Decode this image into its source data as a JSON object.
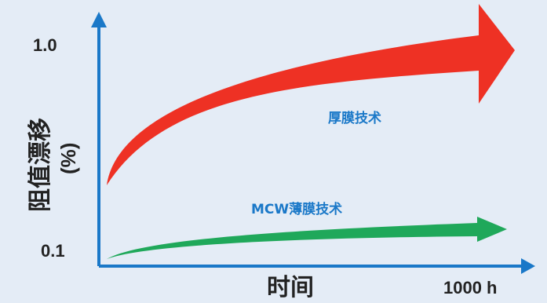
{
  "chart_data": {
    "type": "area",
    "xlabel": "时间",
    "ylabel": "阻值漂移",
    "ylabel_unit": "(%)",
    "x_tick_labels": [
      "1000 h"
    ],
    "y_tick_labels": [
      "1.0",
      "0.1"
    ],
    "series": [
      {
        "name": "厚膜技术",
        "color": "#ee3124",
        "shape": "arrow",
        "start_drift": [
          0.05,
          0.25
        ],
        "end_drift": [
          0.7,
          1.0
        ]
      },
      {
        "name": "MCW薄膜技术",
        "color": "#1fa85a",
        "shape": "arrow",
        "start_drift": [
          0.0,
          0.02
        ],
        "end_drift": [
          0.08,
          0.12
        ]
      }
    ],
    "colors": {
      "axis": "#1a78c8",
      "background": "#e4ecf6",
      "thick_film_label": "#1a78c8",
      "thin_film_label": "#1a78c8"
    }
  }
}
